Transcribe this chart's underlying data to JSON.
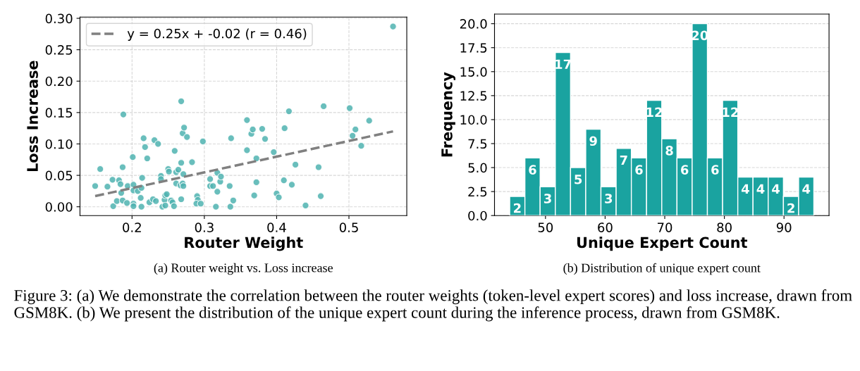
{
  "chart_data": [
    {
      "type": "scatter",
      "xlabel": "Router Weight",
      "ylabel": "Loss Increase",
      "xlim": [
        0.128,
        0.58
      ],
      "ylim": [
        -0.014,
        0.302
      ],
      "xticks": [
        0.2,
        0.3,
        0.4,
        0.5
      ],
      "yticks": [
        {
          "value": 0.0,
          "label": "0.00"
        },
        {
          "value": 0.05,
          "label": "0.05"
        },
        {
          "value": 0.1,
          "label": "0.10"
        },
        {
          "value": 0.15,
          "label": "0.15"
        },
        {
          "value": 0.2,
          "label": "0.20"
        },
        {
          "value": 0.25,
          "label": "0.25"
        },
        {
          "value": 0.3,
          "label": "0.30"
        }
      ],
      "grid": true,
      "legend": "top left",
      "marker": "circle",
      "series": [
        {
          "type": "scatter",
          "color": "#4fb3b0",
          "x": [
            0.149,
            0.156,
            0.166,
            0.173,
            0.174,
            0.179,
            0.182,
            0.184,
            0.185,
            0.187,
            0.187,
            0.188,
            0.193,
            0.194,
            0.202,
            0.201,
            0.202,
            0.202,
            0.202,
            0.208,
            0.212,
            0.213,
            0.213,
            0.214,
            0.216,
            0.218,
            0.221,
            0.224,
            0.229,
            0.231,
            0.233,
            0.236,
            0.24,
            0.24,
            0.242,
            0.245,
            0.246,
            0.248,
            0.246,
            0.25,
            0.251,
            0.254,
            0.256,
            0.258,
            0.259,
            0.261,
            0.261,
            0.264,
            0.267,
            0.268,
            0.268,
            0.268,
            0.27,
            0.271,
            0.271,
            0.27,
            0.272,
            0.276,
            0.283,
            0.29,
            0.291,
            0.289,
            0.295,
            0.298,
            0.308,
            0.308,
            0.312,
            0.316,
            0.318,
            0.318,
            0.322,
            0.323,
            0.335,
            0.336,
            0.337,
            0.34,
            0.359,
            0.359,
            0.365,
            0.367,
            0.369,
            0.372,
            0.372,
            0.38,
            0.384,
            0.396,
            0.4,
            0.403,
            0.41,
            0.411,
            0.417,
            0.421,
            0.426,
            0.44,
            0.458,
            0.461,
            0.465,
            0.501,
            0.505,
            0.509,
            0.517,
            0.528,
            0.561
          ],
          "values": [
            0.033,
            0.06,
            0.032,
            0.043,
            0.001,
            0.009,
            0.042,
            0.036,
            0.022,
            0.063,
            0.01,
            0.147,
            0.006,
            0.033,
            0.035,
            0.079,
            0.026,
            0.005,
            0.001,
            0.025,
            0.014,
            0.03,
            0.0,
            0.046,
            0.109,
            0.095,
            0.077,
            0.007,
            0.012,
            0.106,
            0.009,
            0.1,
            0.049,
            0.044,
            0.0,
            0.011,
            0.018,
            0.02,
            0.002,
            0.06,
            0.056,
            0.01,
            0.007,
            0.001,
            0.089,
            0.037,
            0.055,
            0.059,
            0.034,
            0.07,
            0.012,
            0.168,
            0.037,
            0.033,
            0.052,
            0.117,
            0.126,
            0.111,
            0.071,
            0.017,
            0.011,
            0.005,
            0.005,
            0.104,
            0.044,
            0.033,
            0.033,
            0.0,
            0.024,
            0.054,
            0.04,
            0.048,
            0.033,
            0.0,
            0.109,
            0.01,
            0.138,
            0.09,
            0.116,
            0.123,
            0.018,
            0.039,
            0.077,
            0.124,
            0.108,
            0.087,
            0.021,
            0.015,
            0.042,
            0.125,
            0.152,
            0.035,
            0.067,
            0.002,
            0.063,
            0.017,
            0.16,
            0.157,
            0.113,
            0.123,
            0.097,
            0.137,
            0.287
          ]
        },
        {
          "type": "line",
          "name": "y = 0.25x + -0.02 (r = 0.46)",
          "color": "#808080",
          "line_style": "dashed",
          "marker": "none",
          "x": [
            0.149,
            0.561
          ],
          "values": [
            0.017,
            0.12
          ]
        }
      ],
      "annotations": [
        "(a) Router weight vs. Loss increase",
        "Figure 3: (a) We demonstrate the correlation between the router weights (token-level expert scores) and loss increase, drawn from GSM8K. (b) We present the distribution of the unique expert count during the inference process, drawn from GSM8K."
      ]
    },
    {
      "type": "histogram",
      "xlabel": "Unique Expert Count",
      "ylabel": "Frequency",
      "color": "#1aa3a0",
      "bins": [
        44,
        46.55,
        49.1,
        51.65,
        54.2,
        56.75,
        59.3,
        61.85,
        64.4,
        66.95,
        69.5,
        72.05,
        74.6,
        77.15,
        79.7,
        82.25,
        84.8,
        87.35,
        89.9,
        92.45,
        95
      ],
      "values": [
        2,
        6,
        3,
        17,
        5,
        9,
        3,
        7,
        6,
        12,
        8,
        6,
        20,
        6,
        12,
        4,
        4,
        4,
        2,
        4
      ],
      "data_labels": true,
      "xlim": [
        41.45,
        97.55
      ],
      "ylim": [
        0,
        21
      ],
      "xticks": [
        50,
        60,
        70,
        80,
        90
      ],
      "yticks": [
        {
          "value": 0,
          "label": "0.0"
        },
        2.5,
        {
          "value": 5,
          "label": "5.0"
        },
        7.5,
        {
          "value": 10,
          "label": "10.0"
        },
        12.5,
        {
          "value": 15,
          "label": "15.0"
        },
        17.5,
        {
          "value": 20,
          "label": "20.0"
        }
      ],
      "grid": "y",
      "annotations": [
        "(b) Distribution of unique expert count"
      ]
    }
  ]
}
